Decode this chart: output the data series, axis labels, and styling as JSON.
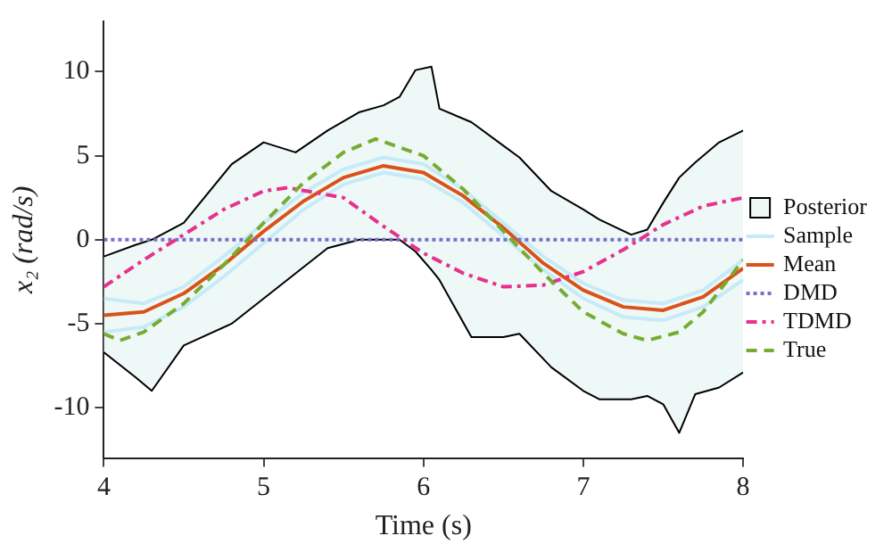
{
  "chart_data": {
    "type": "line",
    "xlabel": "Time (s)",
    "ylabel": "x₂ (rad/s)",
    "xlim": [
      4,
      8
    ],
    "xticks": [
      4,
      5,
      6,
      7,
      8
    ],
    "ylim": [
      -13,
      13
    ],
    "yticks": [
      -10,
      -5,
      0,
      5,
      10
    ],
    "grid": false,
    "legend": "right",
    "marker": "none",
    "series": [
      {
        "name": "Posterior",
        "type": "area",
        "color": "#eef8f7",
        "x": [
          4,
          4.2,
          4.3,
          4.5,
          4.8,
          5,
          5.2,
          5.4,
          5.6,
          5.75,
          5.85,
          5.95,
          6.05,
          6.1,
          6.3,
          6.5,
          6.6,
          6.8,
          7,
          7.1,
          7.3,
          7.4,
          7.5,
          7.6,
          7.7,
          7.85,
          8
        ],
        "values": [
          null,
          null,
          null,
          null,
          null,
          null,
          null,
          null,
          null,
          null,
          null,
          null,
          null,
          null,
          null,
          null,
          null,
          null,
          null,
          null,
          null,
          null,
          null,
          null,
          null,
          null,
          null
        ],
        "upper": [
          -1,
          -0.3,
          0,
          1,
          4.5,
          5.8,
          5.2,
          6.5,
          7.6,
          8,
          8.5,
          10.1,
          10.3,
          7.8,
          7,
          5.6,
          4.9,
          2.9,
          1.8,
          1.2,
          0.3,
          0.6,
          2.2,
          3.7,
          4.6,
          5.8,
          6.5
        ],
        "lower": [
          -6.7,
          -8.2,
          -9,
          -6.3,
          -5,
          -3.5,
          -2,
          -0.5,
          0,
          0,
          0,
          -0.7,
          -1.8,
          -2.4,
          -5.8,
          -5.8,
          -5.6,
          -7.6,
          -9,
          -9.5,
          -9.5,
          -9.3,
          -9.8,
          -11.5,
          -9.2,
          -8.8,
          -7.9
        ]
      },
      {
        "type": "line",
        "color": "#000000",
        "line_style": "solid",
        "x": [
          4,
          4.2,
          4.3,
          4.5,
          4.8,
          5,
          5.2,
          5.4,
          5.6,
          5.75,
          5.85,
          5.95,
          6.05,
          6.1,
          6.3,
          6.5,
          6.6,
          6.8,
          7,
          7.1,
          7.3,
          7.4,
          7.5,
          7.6,
          7.7,
          7.85,
          8
        ],
        "values": [
          -1,
          -0.3,
          0,
          1,
          4.5,
          5.8,
          5.2,
          6.5,
          7.6,
          8,
          8.5,
          10.1,
          10.3,
          7.8,
          7,
          5.6,
          4.9,
          2.9,
          1.8,
          1.2,
          0.3,
          0.6,
          2.2,
          3.7,
          4.6,
          5.8,
          6.5
        ]
      },
      {
        "type": "line",
        "color": "#000000",
        "line_style": "solid",
        "x": [
          4,
          4.2,
          4.3,
          4.5,
          4.8,
          5,
          5.2,
          5.4,
          5.6,
          5.75,
          5.85,
          5.95,
          6.05,
          6.1,
          6.3,
          6.5,
          6.6,
          6.8,
          7,
          7.1,
          7.3,
          7.4,
          7.5,
          7.6,
          7.7,
          7.85,
          8
        ],
        "values": [
          -6.7,
          -8.2,
          -9,
          -6.3,
          -5,
          -3.5,
          -2,
          -0.5,
          0,
          0,
          0,
          -0.7,
          -1.8,
          -2.4,
          -5.8,
          -5.8,
          -5.6,
          -7.6,
          -9,
          -9.5,
          -9.5,
          -9.3,
          -9.8,
          -11.5,
          -9.2,
          -8.8,
          -7.9
        ]
      },
      {
        "name": "Sample",
        "color": "#c6ebf7",
        "line_style": "solid",
        "x": [
          4,
          4.25,
          4.5,
          4.75,
          5,
          5.25,
          5.5,
          5.75,
          6,
          6.25,
          6.5,
          6.75,
          7,
          7.25,
          7.5,
          7.75,
          8
        ],
        "values": [
          -3.5,
          -3.8,
          -2.8,
          -1,
          1,
          2.8,
          4.2,
          4.9,
          4.5,
          3,
          1,
          -1,
          -2.6,
          -3.6,
          -3.8,
          -3,
          -1.2
        ]
      },
      {
        "color": "#c6ebf7",
        "line_style": "solid",
        "x": [
          4,
          4.25,
          4.5,
          4.75,
          5,
          5.25,
          5.5,
          5.75,
          6,
          6.25,
          6.5,
          6.75,
          7,
          7.25,
          7.5,
          7.75,
          8
        ],
        "values": [
          -5.5,
          -5.2,
          -4,
          -2.2,
          -0.2,
          1.8,
          3.3,
          4,
          3.6,
          2.2,
          0.2,
          -1.8,
          -3.5,
          -4.6,
          -4.8,
          -4,
          -2.4
        ]
      },
      {
        "name": "Mean",
        "color": "#d95319",
        "line_style": "solid",
        "x": [
          4,
          4.25,
          4.5,
          4.75,
          5,
          5.25,
          5.5,
          5.75,
          6,
          6.25,
          6.5,
          6.75,
          7,
          7.25,
          7.5,
          7.75,
          8
        ],
        "values": [
          -4.5,
          -4.3,
          -3.2,
          -1.5,
          0.5,
          2.3,
          3.7,
          4.4,
          4,
          2.6,
          0.7,
          -1.4,
          -3,
          -4,
          -4.2,
          -3.4,
          -1.7
        ]
      },
      {
        "name": "DMD",
        "color": "#7b6fc6",
        "line_style": "dotted",
        "x": [
          4,
          8
        ],
        "values": [
          0,
          0
        ]
      },
      {
        "name": "TDMD",
        "color": "#e8308c",
        "line_style": "dashdot",
        "x": [
          4,
          4.25,
          4.5,
          4.75,
          5,
          5.15,
          5.5,
          5.75,
          6,
          6.25,
          6.5,
          6.75,
          7,
          7.25,
          7.5,
          7.75,
          8
        ],
        "values": [
          -2.8,
          -1.2,
          0.3,
          1.8,
          2.9,
          3.1,
          2.5,
          0.8,
          -0.8,
          -2,
          -2.8,
          -2.7,
          -1.9,
          -0.6,
          0.9,
          2,
          2.5
        ]
      },
      {
        "name": "True",
        "color": "#77ac30",
        "line_style": "dashed",
        "x": [
          4,
          4.1,
          4.25,
          4.5,
          4.75,
          5,
          5.25,
          5.5,
          5.7,
          6,
          6.25,
          6.5,
          6.75,
          7,
          7.25,
          7.4,
          7.6,
          7.75,
          8
        ],
        "values": [
          -5.6,
          -6,
          -5.5,
          -3.8,
          -1.5,
          1,
          3.4,
          5.2,
          6,
          5,
          3,
          0.5,
          -2,
          -4.3,
          -5.6,
          -6,
          -5.5,
          -4.3,
          -1.2
        ]
      }
    ]
  }
}
